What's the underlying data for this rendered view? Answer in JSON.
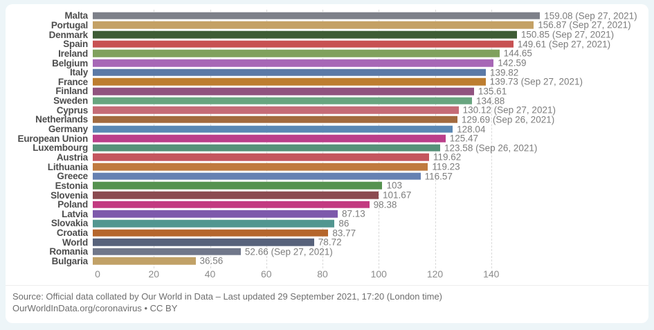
{
  "chart_data": {
    "type": "bar",
    "orientation": "horizontal",
    "title": "",
    "xlabel": "",
    "ylabel": "",
    "xlim": [
      0,
      160
    ],
    "x_ticks": [
      0,
      20,
      40,
      60,
      80,
      100,
      120,
      140
    ],
    "grid": "dashed-vertical",
    "legend": "none",
    "series": [
      {
        "label": "Malta",
        "value": 159.08,
        "display": "159.08 (Sep 27, 2021)",
        "color": "#7d8089"
      },
      {
        "label": "Portugal",
        "value": 156.87,
        "display": "156.87 (Sep 27, 2021)",
        "color": "#c4a165"
      },
      {
        "label": "Denmark",
        "value": 150.85,
        "display": "150.85 (Sep 27, 2021)",
        "color": "#3e5c35"
      },
      {
        "label": "Spain",
        "value": 149.61,
        "display": "149.61 (Sep 27, 2021)",
        "color": "#c75152"
      },
      {
        "label": "Ireland",
        "value": 144.65,
        "display": "144.65",
        "color": "#80a15d"
      },
      {
        "label": "Belgium",
        "value": 142.59,
        "display": "142.59",
        "color": "#a767b6"
      },
      {
        "label": "Italy",
        "value": 139.82,
        "display": "139.82",
        "color": "#5b79a6"
      },
      {
        "label": "France",
        "value": 139.73,
        "display": "139.73 (Sep 27, 2021)",
        "color": "#bd7d30"
      },
      {
        "label": "Finland",
        "value": 135.61,
        "display": "135.61",
        "color": "#90527f"
      },
      {
        "label": "Sweden",
        "value": 134.88,
        "display": "134.88",
        "color": "#68a57f"
      },
      {
        "label": "Cyprus",
        "value": 130.12,
        "display": "130.12 (Sep 27, 2021)",
        "color": "#c56b76"
      },
      {
        "label": "Netherlands",
        "value": 129.69,
        "display": "129.69 (Sep 26, 2021)",
        "color": "#a26a3e"
      },
      {
        "label": "Germany",
        "value": 128.04,
        "display": "128.04",
        "color": "#5a88b4"
      },
      {
        "label": "European Union",
        "value": 125.47,
        "display": "125.47",
        "color": "#bb3e8a"
      },
      {
        "label": "Luxembourg",
        "value": 123.58,
        "display": "123.58 (Sep 26, 2021)",
        "color": "#579179"
      },
      {
        "label": "Austria",
        "value": 119.62,
        "display": "119.62",
        "color": "#c4555e"
      },
      {
        "label": "Lithuania",
        "value": 119.23,
        "display": "119.23",
        "color": "#c07a3e"
      },
      {
        "label": "Greece",
        "value": 116.57,
        "display": "116.57",
        "color": "#6681b2"
      },
      {
        "label": "Estonia",
        "value": 103,
        "display": "103",
        "color": "#55924f"
      },
      {
        "label": "Slovenia",
        "value": 101.67,
        "display": "101.67",
        "color": "#8b4a50"
      },
      {
        "label": "Poland",
        "value": 98.38,
        "display": "98.38",
        "color": "#c23a80"
      },
      {
        "label": "Latvia",
        "value": 87.13,
        "display": "87.13",
        "color": "#7d59ab"
      },
      {
        "label": "Slovakia",
        "value": 86,
        "display": "86",
        "color": "#529690"
      },
      {
        "label": "Croatia",
        "value": 83.77,
        "display": "83.77",
        "color": "#b5662c"
      },
      {
        "label": "World",
        "value": 78.72,
        "display": "78.72",
        "color": "#57627b"
      },
      {
        "label": "Romania",
        "value": 52.66,
        "display": "52.66 (Sep 27, 2021)",
        "color": "#70778a"
      },
      {
        "label": "Bulgaria",
        "value": 36.56,
        "display": "36.56",
        "color": "#c1a167"
      }
    ]
  },
  "footer": {
    "source_line1": "Source: Official data collated by Our World in Data – Last updated 29 September 2021, 17:20 (London time)",
    "source_line2": "OurWorldInData.org/coronavirus • CC BY"
  },
  "colors": {
    "page_background": "#edf5f8",
    "card_background": "#ffffff",
    "gridline": "#d9d9d9",
    "country_label": "#4d4d4d",
    "value_label": "#7d7d7d",
    "tick_label": "#8c8c8c",
    "source_text": "#6e6e6e"
  }
}
